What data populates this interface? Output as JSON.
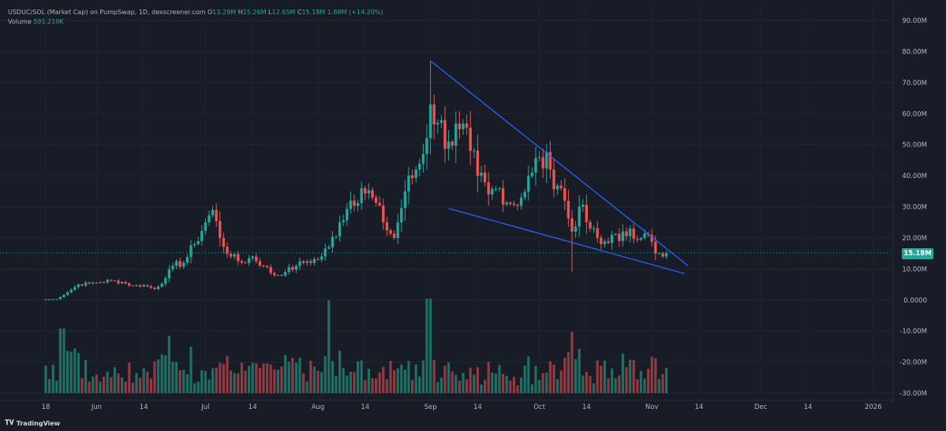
{
  "legend": {
    "symbol": "USDUC/SOL (Market Cap) on PumpSwap, 1D, dexscreener.com",
    "o_label": "O",
    "o_value": "13.29M",
    "h_label": "H",
    "h_value": "15.26M",
    "l_label": "L",
    "l_value": "12.65M",
    "c_label": "C",
    "c_value": "15.18M 1.88M (+14.20%)",
    "volume_label": "Volume",
    "volume_value": "591.219K"
  },
  "price_badge": "15.18M",
  "brand": "TradingView",
  "colors": {
    "background": "#181c27",
    "up": "#26a69a",
    "down": "#ef5350",
    "up_volume": "#1f6f65",
    "down_volume": "#8f3b42",
    "trendline": "#2962ff",
    "axis_text": "#b2b5be"
  },
  "chart_data": {
    "type": "candlestick",
    "y_axis_labels": [
      "90.00M",
      "80.00M",
      "70.00M",
      "60.00M",
      "50.00M",
      "40.00M",
      "30.00M",
      "20.00M",
      "10.00M",
      "0.0000",
      "-10.00M",
      "-20.00M",
      "-30.00M"
    ],
    "y_axis_values": [
      90,
      80,
      70,
      60,
      50,
      40,
      30,
      20,
      10,
      0,
      -10,
      -20,
      -30
    ],
    "x_axis_labels": [
      "18",
      "Jun",
      "14",
      "Jul",
      "14",
      "Aug",
      "14",
      "Sep",
      "14",
      "Oct",
      "14",
      "Nov",
      "14",
      "Dec",
      "14",
      "2026"
    ],
    "x_axis_day_index": [
      0,
      14,
      27,
      44,
      57,
      75,
      88,
      106,
      119,
      136,
      149,
      167,
      180,
      197,
      210,
      228
    ],
    "ylim": [
      -30,
      90
    ],
    "last_close": 15.18,
    "price_path_anchors": [
      [
        0,
        0.2
      ],
      [
        3,
        0.3
      ],
      [
        6,
        2.5
      ],
      [
        9,
        5
      ],
      [
        12,
        5.3
      ],
      [
        15,
        5.8
      ],
      [
        18,
        6.2
      ],
      [
        21,
        5.8
      ],
      [
        24,
        4.5
      ],
      [
        27,
        4.8
      ],
      [
        30,
        3.5
      ],
      [
        33,
        7
      ],
      [
        35,
        11
      ],
      [
        38,
        12
      ],
      [
        41,
        18
      ],
      [
        44,
        25
      ],
      [
        46,
        29
      ],
      [
        48,
        20
      ],
      [
        51,
        14
      ],
      [
        54,
        12
      ],
      [
        57,
        14
      ],
      [
        60,
        11
      ],
      [
        63,
        8
      ],
      [
        66,
        9
      ],
      [
        69,
        11
      ],
      [
        72,
        12.5
      ],
      [
        75,
        13
      ],
      [
        78,
        17
      ],
      [
        81,
        25
      ],
      [
        84,
        32
      ],
      [
        87,
        36
      ],
      [
        90,
        33
      ],
      [
        93,
        25
      ],
      [
        96,
        20
      ],
      [
        99,
        35
      ],
      [
        102,
        42
      ],
      [
        104,
        47
      ],
      [
        106,
        63
      ],
      [
        108,
        57
      ],
      [
        111,
        51
      ],
      [
        114,
        55
      ],
      [
        117,
        48
      ],
      [
        119,
        40
      ],
      [
        122,
        34
      ],
      [
        125,
        36
      ],
      [
        128,
        31
      ],
      [
        131,
        33
      ],
      [
        134,
        41
      ],
      [
        136,
        46
      ],
      [
        139,
        42
      ],
      [
        142,
        36
      ],
      [
        145,
        22
      ],
      [
        147,
        30
      ],
      [
        150,
        23
      ],
      [
        153,
        18
      ],
      [
        156,
        21
      ],
      [
        158,
        19
      ],
      [
        161,
        23
      ],
      [
        164,
        20
      ],
      [
        166,
        21
      ],
      [
        168,
        15
      ],
      [
        170,
        14
      ],
      [
        171,
        15.18
      ]
    ],
    "volume": {
      "ymin": 592000,
      "max_visible_bar": "approx. 30M on price scale equivalent",
      "notes": "Volume bars drawn along bottom band, colored by candle direction"
    },
    "trendlines": [
      {
        "name": "upper",
        "from": [
          106,
          77
        ],
        "to": [
          177,
          11
        ]
      },
      {
        "name": "lower",
        "from": [
          111,
          29.5
        ],
        "to": [
          176,
          8.5
        ]
      }
    ],
    "last_price_line": 15.18
  }
}
